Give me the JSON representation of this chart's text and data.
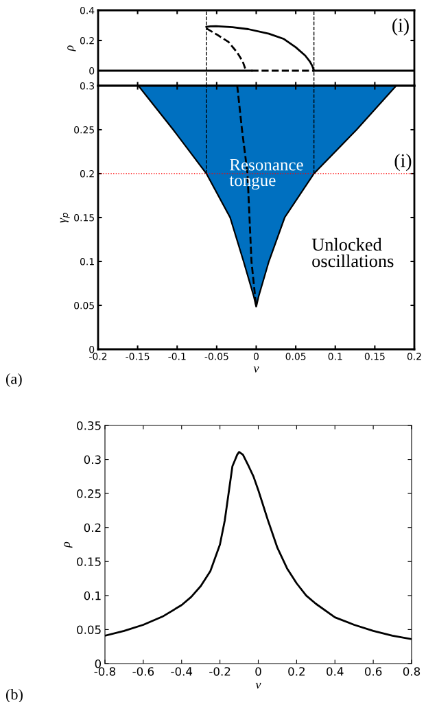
{
  "chart_data": [
    {
      "type": "line",
      "ylabel": "ρ",
      "xlim": [
        -0.2,
        0.2
      ],
      "xticks": [
        -0.2,
        -0.15,
        -0.1,
        -0.05,
        0,
        0.05,
        0.1,
        0.15,
        0.2
      ],
      "ylim": [
        -0.1,
        0.4
      ],
      "yticks": [
        0,
        0.2,
        0.4
      ],
      "tick_labels": "y",
      "series": [
        {
          "color": "#000000",
          "line_style": "solid",
          "x": [
            -0.063,
            -0.058,
            -0.051,
            -0.03,
            -0.01,
            0.016,
            0.035,
            0.05,
            0.062,
            0.068,
            0.071,
            0.073
          ],
          "values": [
            0.29,
            0.294,
            0.295,
            0.288,
            0.275,
            0.245,
            0.21,
            0.155,
            0.1,
            0.06,
            0.03,
            0.0
          ]
        },
        {
          "color": "#000000",
          "line_style": "dashed",
          "x": [
            -0.063,
            -0.05,
            -0.035,
            -0.024,
            -0.017,
            -0.013
          ],
          "values": [
            0.28,
            0.24,
            0.19,
            0.12,
            0.06,
            0.0
          ]
        },
        {
          "color": "#000000",
          "line_style": "solid",
          "x": [
            -0.2,
            -0.006
          ],
          "values": [
            0,
            0
          ]
        },
        {
          "color": "#000000",
          "line_style": "dashed",
          "x": [
            -0.006,
            0.073
          ],
          "values": [
            0,
            0
          ]
        },
        {
          "color": "#000000",
          "line_style": "solid",
          "x": [
            0.073,
            0.2
          ],
          "values": [
            0,
            0
          ]
        }
      ],
      "ref_lines": [
        {
          "axis": "x",
          "value": -0.063,
          "color": "#000000",
          "line_style": "dashed"
        },
        {
          "axis": "x",
          "value": 0.073,
          "color": "#000000",
          "line_style": "dashed"
        }
      ],
      "annotations": [
        "(i)"
      ]
    },
    {
      "type": "line",
      "xlabel": "ν",
      "ylabel": "γ$_{p}$",
      "xlim": [
        -0.2,
        0.2
      ],
      "xticks": [
        -0.2,
        -0.15,
        -0.1,
        -0.05,
        0,
        0.05,
        0.1,
        0.15,
        0.2
      ],
      "ylim": [
        0,
        0.3
      ],
      "yticks": [
        0,
        0.05,
        0.1,
        0.15,
        0.2,
        0.25,
        0.3
      ],
      "series": [
        {
          "type": "area",
          "color": "#0070c0",
          "x": [
            -0.149,
            -0.105,
            -0.063,
            -0.033,
            -0.016,
            -0.003,
            0,
            0.003,
            0.016,
            0.036,
            0.073,
            0.127,
            0.177
          ],
          "values": [
            0.3,
            0.25,
            0.2,
            0.15,
            0.1,
            0.06,
            0.048,
            0.06,
            0.1,
            0.15,
            0.2,
            0.25,
            0.3
          ]
        },
        {
          "color": "#000000",
          "line_style": "dashed",
          "x": [
            -0.024,
            -0.018,
            -0.011,
            -0.006,
            0
          ],
          "values": [
            0.3,
            0.25,
            0.2,
            0.1,
            0.048
          ]
        },
        {
          "color": "#000000",
          "line_style": "dashed",
          "x": [
            -0.063,
            -0.063
          ],
          "values": [
            0.2,
            0.3
          ]
        },
        {
          "color": "#000000",
          "line_style": "dashed",
          "x": [
            0.073,
            0.073
          ],
          "values": [
            0.2,
            0.3
          ]
        }
      ],
      "ref_lines": [
        {
          "axis": "y",
          "value": 0.2,
          "color": "#ff0000",
          "line_style": "dotted"
        }
      ],
      "annotations": [
        "Resonance\ntongue",
        {
          "text": "(i)",
          "x": 0.2,
          "y": 0.2
        },
        "Unlocked\noscillations",
        "(a)"
      ]
    },
    {
      "type": "line",
      "xlabel": "ν",
      "ylabel": "ρ",
      "xlim": [
        -0.8,
        0.8
      ],
      "xticks": [
        -0.8,
        -0.6,
        -0.4,
        -0.2,
        0,
        0.2,
        0.4,
        0.6,
        0.8
      ],
      "ylim": [
        0,
        0.35
      ],
      "yticks": [
        0,
        0.05,
        0.1,
        0.15,
        0.2,
        0.25,
        0.3,
        0.35
      ],
      "series": [
        {
          "color": "#000000",
          "line_style": "solid",
          "x": [
            -0.8,
            -0.7,
            -0.6,
            -0.5,
            -0.4,
            -0.35,
            -0.3,
            -0.25,
            -0.2,
            -0.175,
            -0.15,
            -0.135,
            -0.12,
            -0.11,
            -0.1,
            -0.08,
            -0.05,
            -0.025,
            0,
            0.025,
            0.05,
            0.1,
            0.15,
            0.2,
            0.25,
            0.3,
            0.4,
            0.5,
            0.6,
            0.7,
            0.8
          ],
          "values": [
            0.041,
            0.048,
            0.057,
            0.069,
            0.086,
            0.098,
            0.114,
            0.136,
            0.175,
            0.21,
            0.26,
            0.29,
            0.3,
            0.307,
            0.311,
            0.307,
            0.29,
            0.275,
            0.255,
            0.233,
            0.211,
            0.17,
            0.14,
            0.118,
            0.1,
            0.088,
            0.068,
            0.057,
            0.048,
            0.041,
            0.036
          ]
        }
      ],
      "annotations": [
        "(b)"
      ]
    }
  ]
}
